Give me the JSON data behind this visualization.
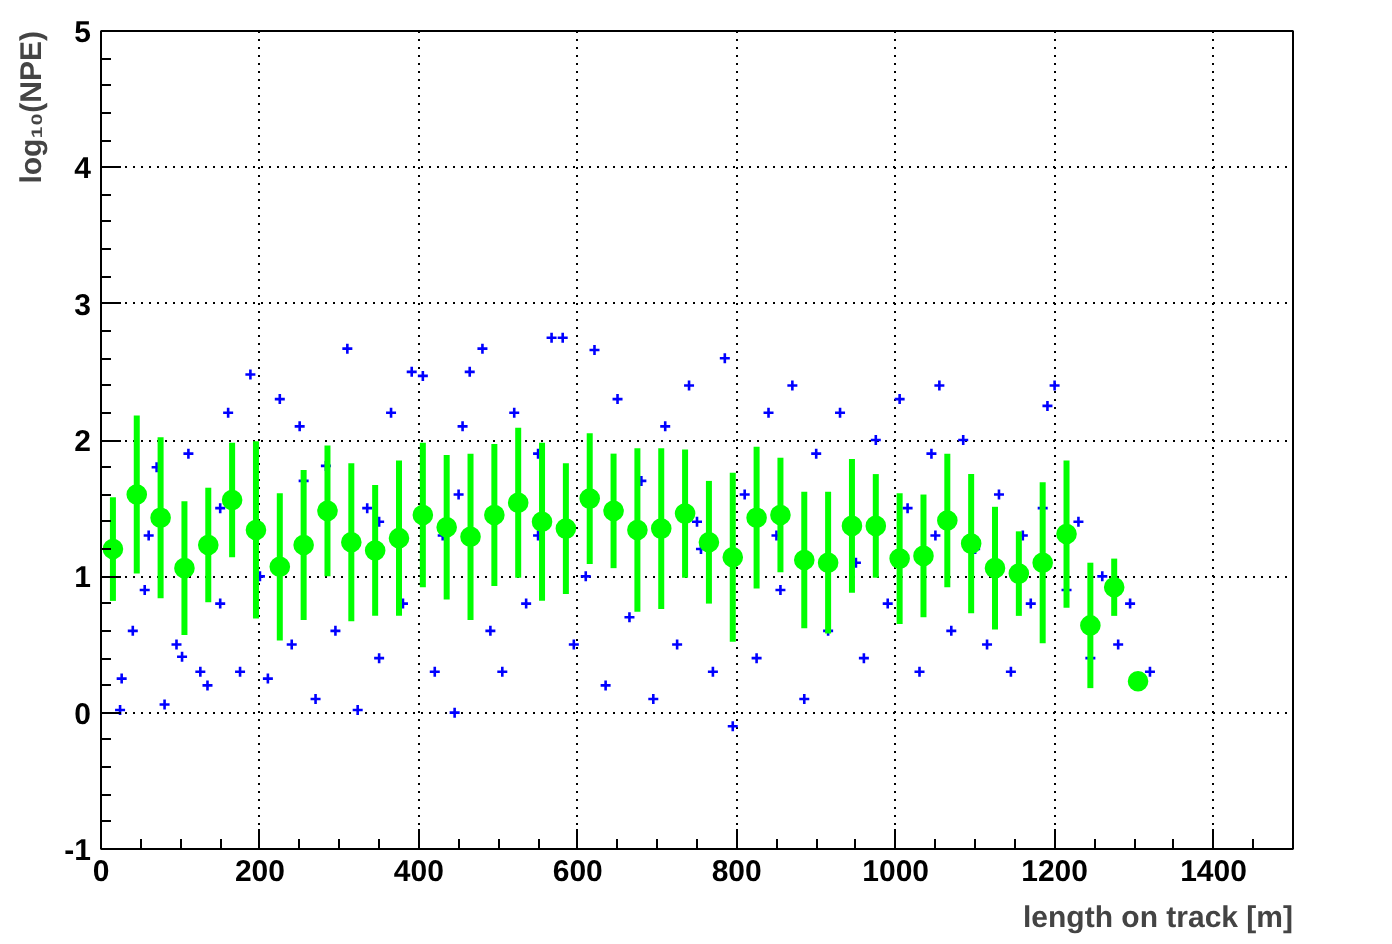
{
  "chart_data": {
    "type": "scatter",
    "xlabel": "length on track [m]",
    "ylabel": "log₁₀(NPE)",
    "xlim": [
      0,
      1500
    ],
    "ylim": [
      -1,
      5
    ],
    "xticks": [
      0,
      200,
      400,
      600,
      800,
      1000,
      1200,
      1400
    ],
    "yticks": [
      -1,
      0,
      1,
      2,
      3,
      4,
      5
    ],
    "grid": true,
    "series": [
      {
        "marker": "cross",
        "color": "#0000ff",
        "x": [
          24,
          26,
          40,
          55,
          60,
          70,
          80,
          95,
          102,
          110,
          125,
          134,
          150,
          150,
          160,
          175,
          188,
          200,
          210,
          225,
          240,
          250,
          255,
          270,
          283,
          295,
          310,
          323,
          335,
          350,
          350,
          365,
          380,
          391,
          405,
          420,
          430,
          445,
          450,
          455,
          464,
          480,
          490,
          505,
          520,
          535,
          550,
          550,
          567,
          581,
          595,
          610,
          621,
          635,
          650,
          665,
          680,
          695,
          710,
          725,
          740,
          750,
          755,
          770,
          785,
          795,
          810,
          825,
          840,
          850,
          855,
          870,
          885,
          900,
          915,
          930,
          950,
          960,
          975,
          990,
          1005,
          1015,
          1030,
          1045,
          1050,
          1055,
          1070,
          1085,
          1100,
          1115,
          1130,
          1145,
          1160,
          1170,
          1185,
          1191,
          1200,
          1215,
          1230,
          1245,
          1260,
          1280,
          1295,
          1320
        ],
        "values": [
          0.02,
          0.25,
          0.6,
          0.9,
          1.3,
          1.8,
          0.06,
          0.5,
          0.41,
          1.9,
          0.3,
          0.2,
          0.8,
          1.5,
          2.2,
          0.3,
          2.48,
          1.0,
          0.25,
          2.3,
          0.5,
          2.1,
          1.7,
          0.1,
          1.81,
          0.6,
          2.67,
          0.02,
          1.5,
          0.4,
          1.4,
          2.2,
          0.8,
          2.5,
          2.47,
          0.3,
          1.3,
          0.0,
          1.6,
          2.1,
          2.5,
          2.67,
          0.6,
          0.3,
          2.2,
          0.8,
          1.9,
          1.3,
          2.75,
          2.75,
          0.5,
          1.0,
          2.66,
          0.2,
          2.3,
          0.7,
          1.7,
          0.1,
          2.1,
          0.5,
          2.4,
          1.4,
          1.2,
          0.3,
          2.6,
          -0.1,
          1.6,
          0.4,
          2.2,
          1.3,
          0.9,
          2.4,
          0.1,
          1.9,
          0.6,
          2.2,
          1.1,
          0.4,
          2.0,
          0.8,
          2.3,
          1.5,
          0.3,
          1.9,
          1.3,
          2.4,
          0.6,
          2.0,
          1.2,
          0.5,
          1.6,
          0.3,
          1.3,
          0.8,
          1.5,
          2.25,
          2.4,
          0.9,
          1.4,
          0.4,
          1.0,
          0.5,
          0.8,
          0.3
        ]
      },
      {
        "marker": "circle",
        "color": "#00ff00",
        "x": [
          15,
          45,
          75,
          105,
          135,
          165,
          195,
          225,
          255,
          285,
          315,
          345,
          375,
          405,
          435,
          465,
          495,
          525,
          555,
          585,
          615,
          645,
          675,
          705,
          735,
          765,
          795,
          825,
          855,
          885,
          915,
          945,
          975,
          1005,
          1035,
          1065,
          1095,
          1125,
          1155,
          1185,
          1215,
          1245,
          1275,
          1305
        ],
        "values": [
          1.2,
          1.6,
          1.43,
          1.06,
          1.23,
          1.56,
          1.34,
          1.07,
          1.23,
          1.48,
          1.25,
          1.19,
          1.28,
          1.45,
          1.36,
          1.29,
          1.45,
          1.54,
          1.4,
          1.35,
          1.57,
          1.48,
          1.34,
          1.35,
          1.46,
          1.25,
          1.14,
          1.43,
          1.45,
          1.12,
          1.1,
          1.37,
          1.37,
          1.13,
          1.15,
          1.41,
          1.24,
          1.06,
          1.02,
          1.1,
          1.31,
          0.64,
          0.92,
          0.23
        ],
        "errors": [
          0.38,
          0.58,
          0.59,
          0.49,
          0.42,
          0.42,
          0.65,
          0.54,
          0.55,
          0.48,
          0.58,
          0.48,
          0.57,
          0.53,
          0.53,
          0.61,
          0.52,
          0.55,
          0.58,
          0.48,
          0.48,
          0.42,
          0.6,
          0.59,
          0.47,
          0.45,
          0.62,
          0.52,
          0.42,
          0.5,
          0.52,
          0.49,
          0.38,
          0.48,
          0.45,
          0.49,
          0.51,
          0.45,
          0.31,
          0.59,
          0.54,
          0.46,
          0.21,
          null
        ]
      }
    ]
  }
}
